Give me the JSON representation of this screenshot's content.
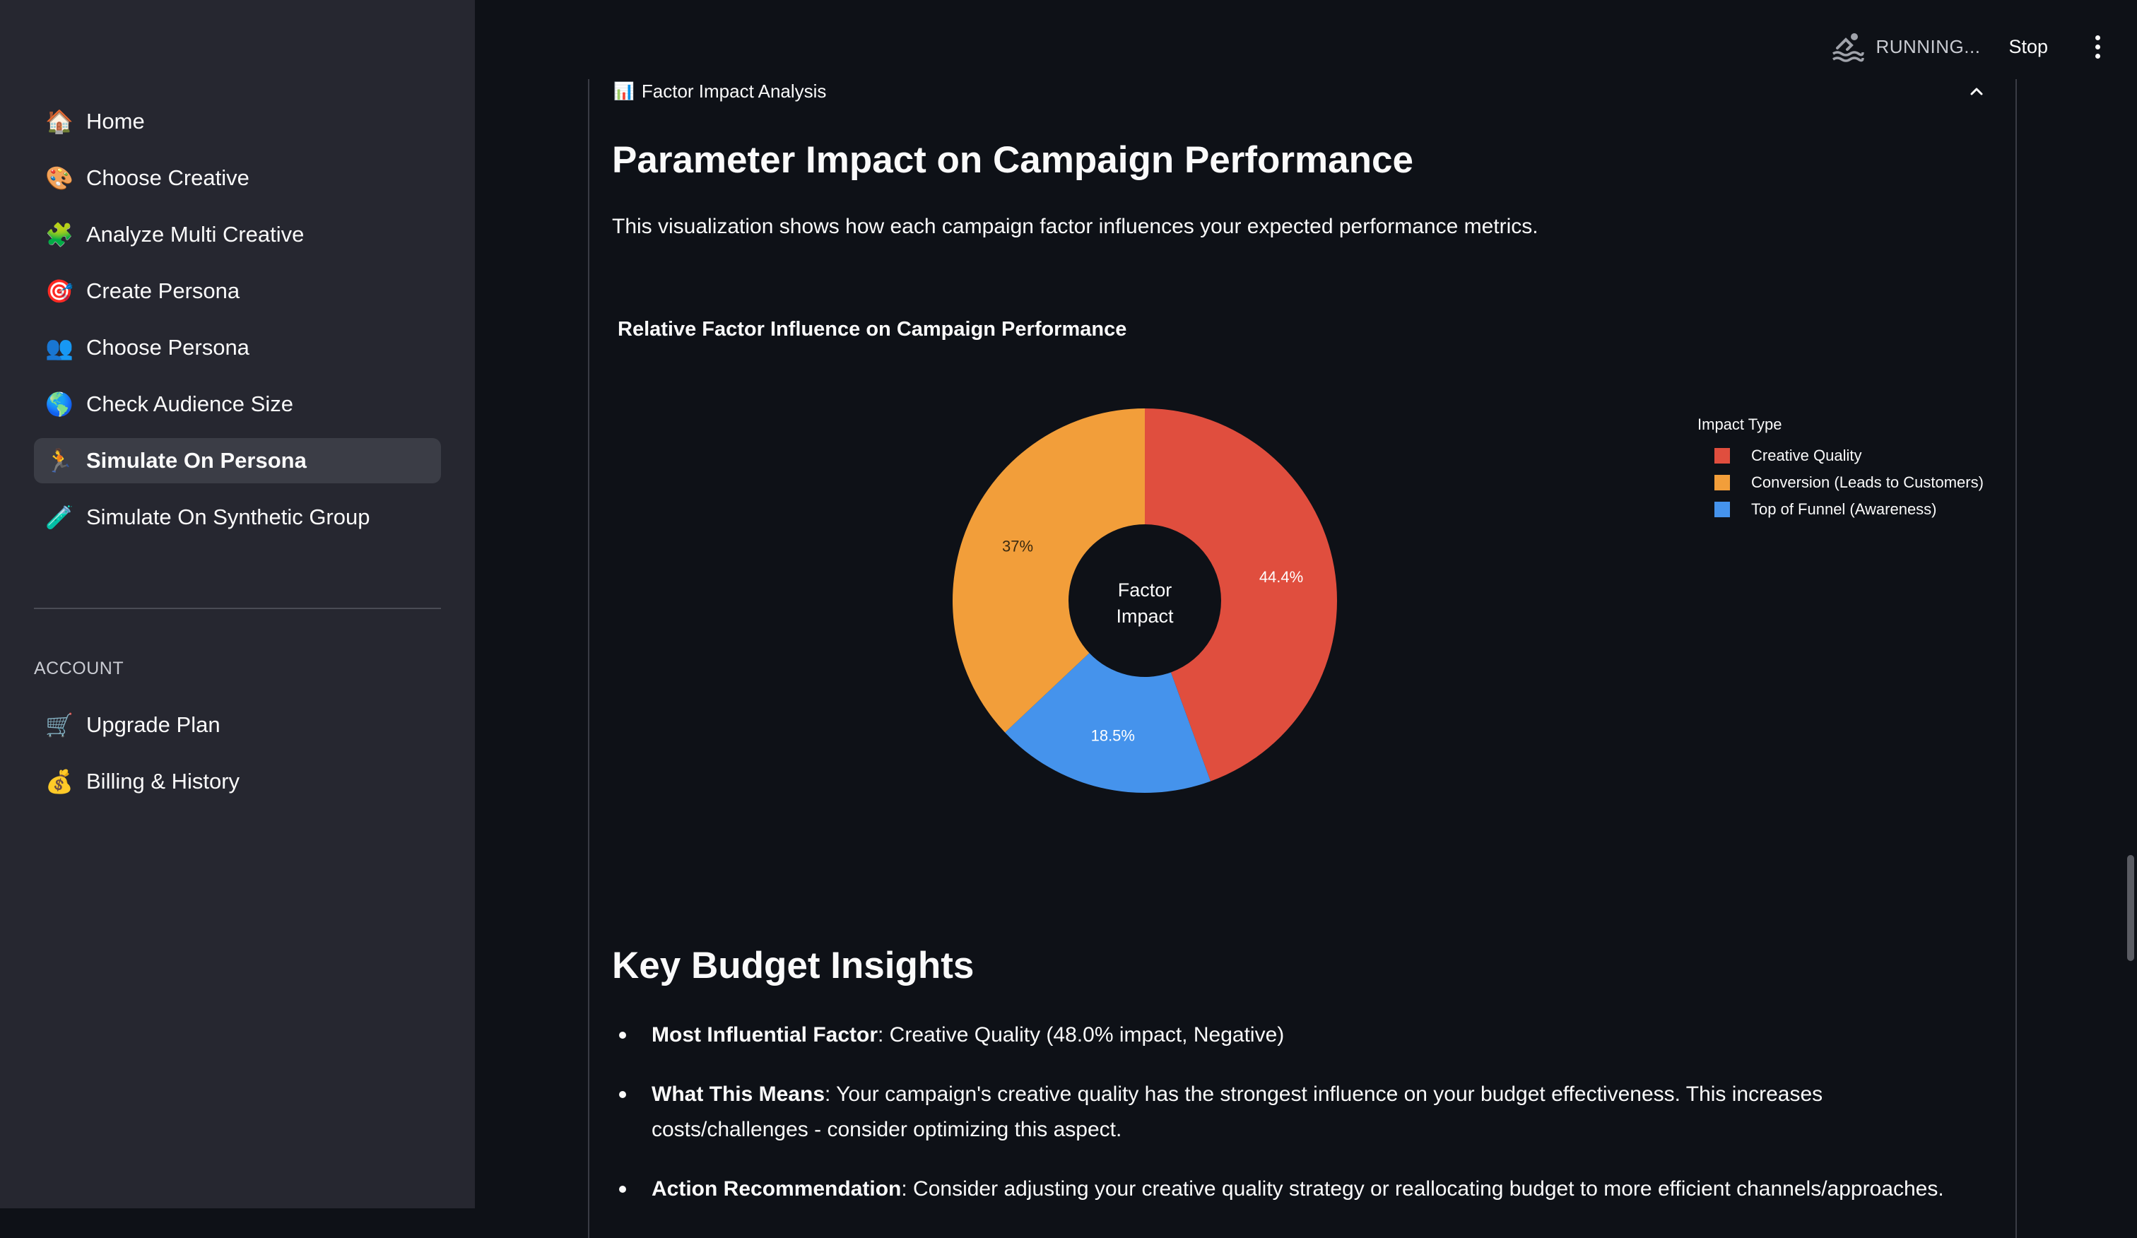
{
  "sidebar": {
    "items": [
      {
        "icon": "🏠",
        "icon_name": "home-icon",
        "label": "Home"
      },
      {
        "icon": "🎨",
        "icon_name": "palette-icon",
        "label": "Choose Creative"
      },
      {
        "icon": "🧩",
        "icon_name": "puzzle-icon",
        "label": "Analyze Multi Creative"
      },
      {
        "icon": "🎯",
        "icon_name": "target-icon",
        "label": "Create Persona"
      },
      {
        "icon": "👥",
        "icon_name": "people-icon",
        "label": "Choose Persona"
      },
      {
        "icon": "🌎",
        "icon_name": "globe-icon",
        "label": "Check Audience Size"
      },
      {
        "icon": "🏃",
        "icon_name": "running-person-icon",
        "label": "Simulate On Persona",
        "active": true
      },
      {
        "icon": "🧪",
        "icon_name": "test-tube-icon",
        "label": "Simulate On Synthetic Group"
      }
    ],
    "account_label": "ACCOUNT",
    "account_items": [
      {
        "icon": "🛒",
        "icon_name": "cart-icon",
        "label": "Upgrade Plan"
      },
      {
        "icon": "💰",
        "icon_name": "money-bag-icon",
        "label": "Billing & History"
      }
    ]
  },
  "topbar": {
    "status": "RUNNING...",
    "stop_label": "Stop"
  },
  "expander": {
    "icon": "📊",
    "title": "Factor Impact Analysis"
  },
  "main": {
    "heading": "Parameter Impact on Campaign Performance",
    "description": "This visualization shows how each campaign factor influences your expected performance metrics.",
    "insights_heading": "Key Budget Insights",
    "insights": [
      {
        "label": "Most Influential Factor",
        "text": ": Creative Quality (48.0% impact, Negative)"
      },
      {
        "label": "What This Means",
        "text": ": Your campaign's creative quality has the strongest influence on your budget effectiveness. This increases costs/challenges - consider optimizing this aspect."
      },
      {
        "label": "Action Recommendation",
        "text": ": Consider adjusting your creative quality strategy or reallocating budget to more efficient channels/approaches."
      }
    ]
  },
  "chart_data": {
    "type": "pie",
    "title": "Relative Factor Influence on Campaign Performance",
    "center_label_line1": "Factor",
    "center_label_line2": "Impact",
    "legend_title": "Impact Type",
    "legend_position": "top-right",
    "slices": [
      {
        "name": "Creative Quality",
        "value": 44.4,
        "label": "44.4%",
        "color": "#e04e3e"
      },
      {
        "name": "Top of Funnel (Awareness)",
        "value": 18.5,
        "label": "18.5%",
        "color": "#4593ec"
      },
      {
        "name": "Conversion (Leads to Customers)",
        "value": 37,
        "label": "37%",
        "color": "#f29e3a"
      }
    ],
    "legend_order": [
      0,
      2,
      1
    ]
  }
}
